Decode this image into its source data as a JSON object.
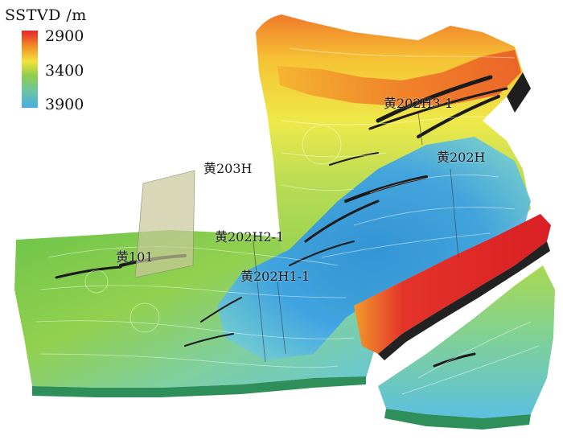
{
  "legend": {
    "title": "SSTVD /m",
    "ticks": [
      "2900",
      "3400",
      "3900"
    ],
    "colors": [
      "#e3262a",
      "#f28c28",
      "#f4e23a",
      "#8fcf4a",
      "#6cc6a0",
      "#46aee6"
    ]
  },
  "wells": [
    {
      "id": "huang-203h",
      "label": "黄203H"
    },
    {
      "id": "huang-101",
      "label": "黄101"
    },
    {
      "id": "huang-202h2-1",
      "label": "黄202H2-1"
    },
    {
      "id": "huang-202h1-1",
      "label": "黄202H1-1"
    },
    {
      "id": "huang-202h3-1",
      "label": "黄202H3-1"
    },
    {
      "id": "huang-202h",
      "label": "黄202H"
    }
  ]
}
